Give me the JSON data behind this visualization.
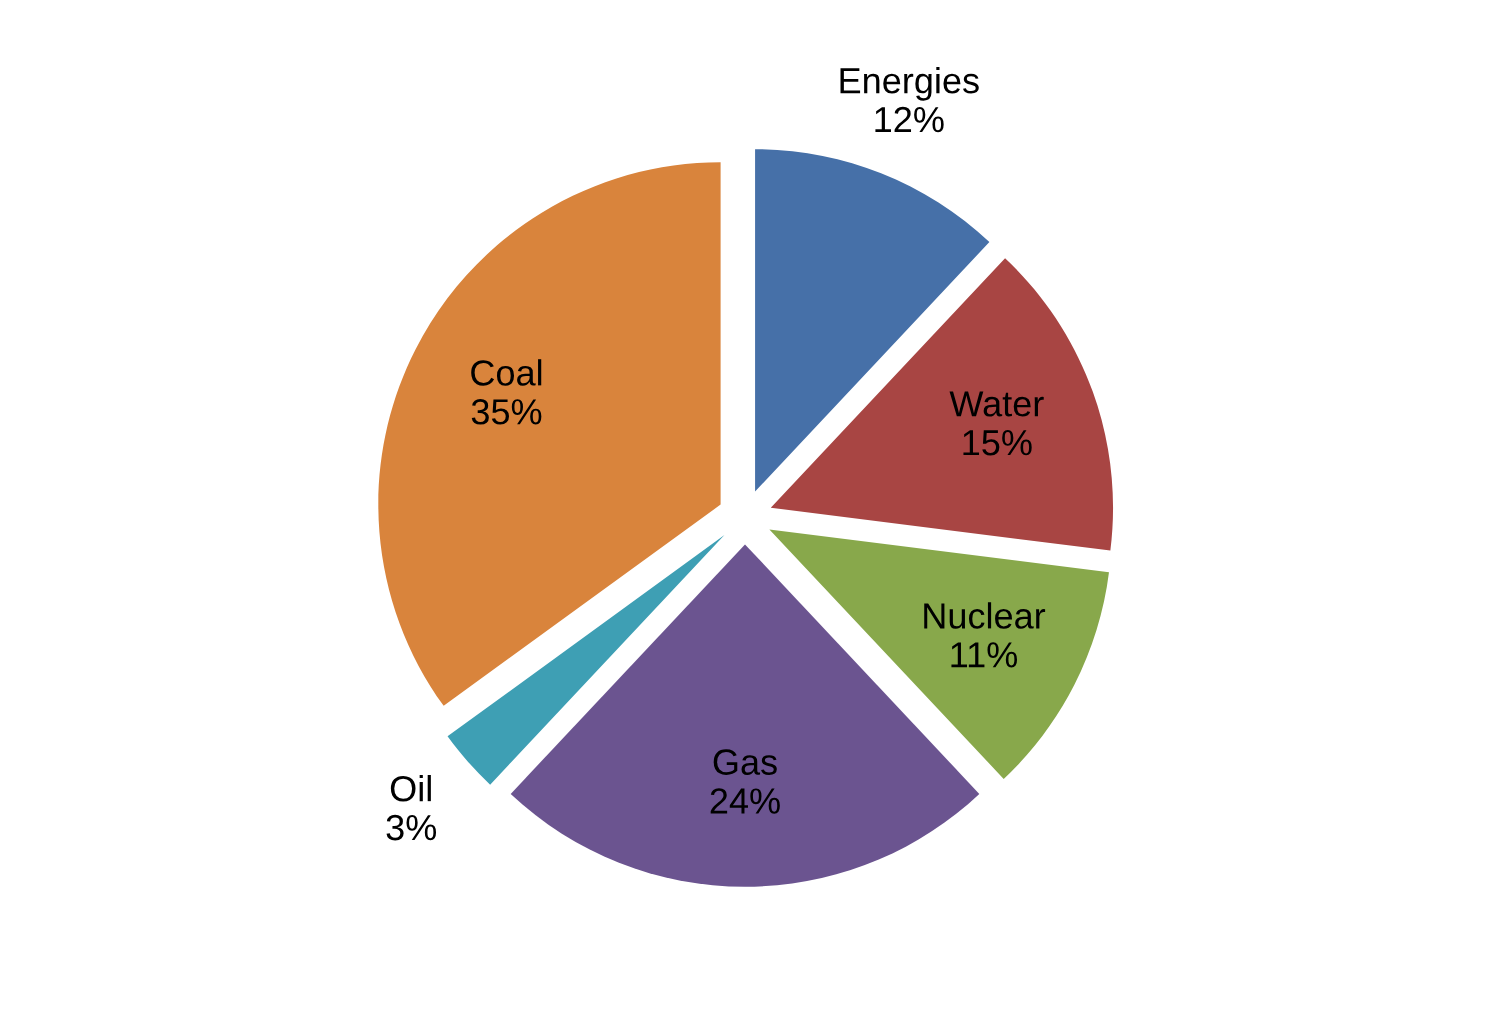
{
  "chart_data": {
    "type": "pie",
    "categories": [
      "Energies",
      "Water",
      "Nuclear",
      "Gas",
      "Oil",
      "Coal"
    ],
    "values": [
      12,
      15,
      11,
      24,
      3,
      35
    ],
    "value_labels": [
      "12%",
      "15%",
      "11%",
      "24%",
      "3%",
      "35%"
    ],
    "colors": [
      "#4670a8",
      "#a84543",
      "#88a84b",
      "#6b5490",
      "#3e9fb4",
      "#d9843c"
    ]
  }
}
